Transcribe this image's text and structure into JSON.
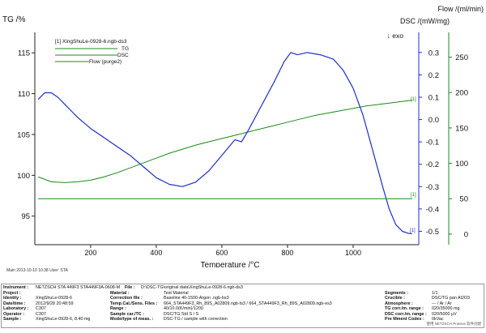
{
  "chart_data": {
    "type": "line",
    "left_axis_title": "TG /%",
    "right_axis_title_1": "Flow /(ml/min)",
    "right_axis_title_2": "DSC /(mW/mg)",
    "exo_marker": "↓ exo",
    "xlabel": "Temperature /°C",
    "xlim": [
      30,
      1200
    ],
    "tg_ylim": [
      91.5,
      117.5
    ],
    "dsc_ylim": [
      -0.56,
      0.39
    ],
    "flow_ylim": [
      -15,
      285
    ],
    "x_ticks": [
      "200",
      "400",
      "600",
      "800",
      "1000"
    ],
    "tg_ticks": [
      "95",
      "100",
      "105",
      "110",
      "115"
    ],
    "dsc_ticks": [
      "0.3",
      "0.2",
      "0.1",
      "0.0",
      "-0.1",
      "-0.2",
      "-0.3",
      "-0.4",
      "-0.5"
    ],
    "flow_ticks": [
      "250",
      "200",
      "150",
      "100",
      "50",
      "0"
    ],
    "legend_header": "[1] XingShuLe-0928-6.ngb-ds3",
    "legend": [
      "TG",
      "DSC",
      "Flow (purge2)"
    ],
    "curve_marker": "[1]",
    "colors": {
      "tg": "#1c8a1c",
      "dsc": "#1e2fc8",
      "flow": "#1c8a1c",
      "axis": "#222222"
    },
    "series": [
      {
        "name": "TG",
        "axis": "tg",
        "x": [
          40,
          80,
          120,
          160,
          200,
          240,
          280,
          320,
          360,
          400,
          440,
          480,
          520,
          560,
          600,
          640,
          680,
          720,
          760,
          800,
          840,
          880,
          920,
          960,
          1000,
          1040,
          1080,
          1120,
          1160,
          1180
        ],
        "y": [
          99.8,
          99.2,
          99.1,
          99.2,
          99.4,
          99.8,
          100.3,
          100.9,
          101.5,
          102.1,
          102.7,
          103.2,
          103.7,
          104.1,
          104.5,
          104.9,
          105.3,
          105.7,
          106.1,
          106.5,
          106.9,
          107.3,
          107.6,
          107.9,
          108.2,
          108.5,
          108.7,
          108.9,
          109.1,
          109.2
        ]
      },
      {
        "name": "DSC",
        "axis": "dsc",
        "x": [
          40,
          60,
          80,
          100,
          120,
          140,
          160,
          200,
          240,
          280,
          320,
          360,
          400,
          440,
          480,
          520,
          560,
          600,
          640,
          660,
          680,
          720,
          760,
          790,
          810,
          830,
          860,
          900,
          940,
          970,
          1000,
          1030,
          1060,
          1090,
          1110,
          1130,
          1150,
          1170,
          1180
        ],
        "y": [
          0.09,
          0.12,
          0.12,
          0.1,
          0.07,
          0.04,
          0.01,
          -0.04,
          -0.08,
          -0.12,
          -0.16,
          -0.21,
          -0.26,
          -0.29,
          -0.3,
          -0.28,
          -0.23,
          -0.16,
          -0.09,
          -0.1,
          -0.05,
          0.06,
          0.17,
          0.26,
          0.3,
          0.29,
          0.3,
          0.29,
          0.27,
          0.22,
          0.14,
          0.02,
          -0.14,
          -0.3,
          -0.4,
          -0.47,
          -0.5,
          -0.51,
          -0.51
        ]
      },
      {
        "name": "Flow (purge2)",
        "axis": "flow",
        "x": [
          40,
          1180
        ],
        "y": [
          50,
          50
        ]
      }
    ]
  },
  "footer": {
    "line": "Main  2013-10-10 10:38  User: STA"
  },
  "info": {
    "col1": [
      {
        "label": "Project :",
        "value": ""
      },
      {
        "label": "Identity :",
        "value": "XingShuLe-0928-6"
      },
      {
        "label": "Date/time :",
        "value": "2012/9/28 20:48:59"
      },
      {
        "label": "Laboratory :",
        "value": "C307"
      },
      {
        "label": "Operator :",
        "value": "C307"
      },
      {
        "label": "Sample :",
        "value": "XingShuLe-0928-6, 8.40 mg"
      }
    ],
    "col2": [
      {
        "label": "Material :",
        "value": "Test Material"
      },
      {
        "label": "Correction file :",
        "value": "Baseline 40-1500-Argon .ngb-bs3"
      },
      {
        "label": "Temp.Cal./Sens. Files :",
        "value": "664_STA449F3_Rh_89S_A02809.ngb-ts3 / 664_STA449F3_Rh_89S_A02809.ngb-es3"
      },
      {
        "label": "Range :",
        "value": "40/10.0(K/min)/1200"
      },
      {
        "label": "Sample car./TC :",
        "value": "DSC/TG Std S / S"
      },
      {
        "label": "Mode/type of meas. :",
        "value": "DSC-TG / sample with correction"
      }
    ],
    "col3": [
      {
        "label": "Segments :",
        "value": "1/1"
      },
      {
        "label": "Crucible :",
        "value": "DSC/TG pan Al2O3"
      },
      {
        "label": "Atmosphere :",
        "value": "--- / Ar / Ar"
      },
      {
        "label": "TG corr./m. range :",
        "value": "020/35000 mg"
      },
      {
        "label": "DSC corr./m. range :",
        "value": "020/5000 µV"
      },
      {
        "label": "Pre Mment Codes :",
        "value": "0kVac"
      }
    ],
    "instrument_label": "Instrument :",
    "instrument_value": "NETZSCH STA 449F3 STA449F3A-0608-M",
    "file_label": "File :",
    "file_value": "D:\\DSC-TG\\original data\\XingShuLe-0928-6.ngb-ds3",
    "brand": "使用 NETZSCH Proteus 软件创建"
  }
}
